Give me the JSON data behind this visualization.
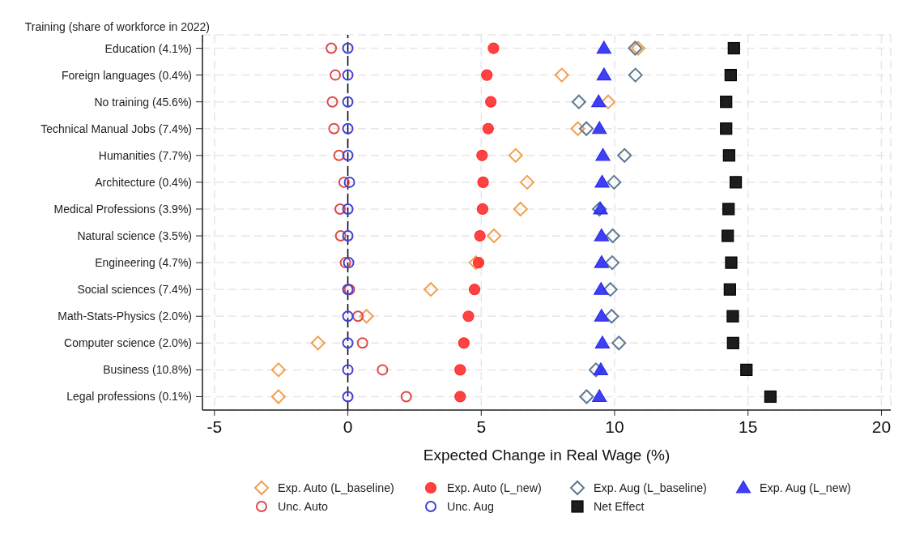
{
  "chart_data": {
    "type": "scatter",
    "orientation": "horizontal",
    "xlabel": "Expected Change in Real Wage (%)",
    "ylabel": "Training (share of workforce in 2022)",
    "categories": [
      "Education (4.1%)",
      "Foreign languages (0.4%)",
      "No training (45.6%)",
      "Technical Manual Jobs (7.4%)",
      "Humanities (7.7%)",
      "Architecture (0.4%)",
      "Medical Professions (3.9%)",
      "Natural science (3.5%)",
      "Engineering (4.7%)",
      "Social sciences (7.4%)",
      "Math-Stats-Physics (2.0%)",
      "Computer science (2.0%)",
      "Business (10.8%)",
      "Legal professions (0.1%)"
    ],
    "xlim": [
      -5.45,
      20.35
    ],
    "xticks": [
      -5,
      0,
      5,
      10,
      15,
      20
    ],
    "grid": true,
    "legend": "bottom",
    "ref_lines": [
      {
        "axis": "x",
        "value": 0,
        "color": "#000000",
        "line_style": "dashed"
      }
    ],
    "series": [
      {
        "name": "Exp. Auto (L_baseline)",
        "color": "#f2a04e",
        "marker": "diamond",
        "values": [
          10.88,
          8.02,
          9.76,
          8.62,
          6.29,
          6.72,
          6.47,
          5.48,
          4.8,
          3.11,
          0.7,
          -1.12,
          -2.6,
          -2.6
        ]
      },
      {
        "name": "Exp. Auto (L_new)",
        "color": "#ff2e2e",
        "marker": "circle",
        "values": [
          5.46,
          5.21,
          5.36,
          5.26,
          5.03,
          5.07,
          5.05,
          4.95,
          4.9,
          4.75,
          4.52,
          4.35,
          4.21,
          4.21
        ]
      },
      {
        "name": "Exp. Aug (L_baseline)",
        "color": "#5e7a92",
        "marker": "diamond",
        "values": [
          10.77,
          10.78,
          8.66,
          8.94,
          10.37,
          9.98,
          9.43,
          9.93,
          9.91,
          9.84,
          9.89,
          10.16,
          9.3,
          8.95
        ]
      },
      {
        "name": "Exp. Aug (L_new)",
        "color": "#2b2bf2",
        "marker": "triangle",
        "values": [
          9.6,
          9.6,
          9.4,
          9.43,
          9.56,
          9.53,
          9.47,
          9.51,
          9.51,
          9.49,
          9.51,
          9.54,
          9.48,
          9.43
        ]
      },
      {
        "name": "Unc. Auto",
        "color": "#e04848",
        "marker": "circle",
        "values": [
          -0.62,
          -0.47,
          -0.58,
          -0.52,
          -0.33,
          -0.14,
          -0.29,
          -0.27,
          -0.09,
          0.06,
          0.38,
          0.55,
          1.3,
          2.19
        ]
      },
      {
        "name": "Unc. Aug",
        "color": "#4040dc",
        "marker": "circle",
        "values": [
          0,
          0,
          0,
          0,
          0,
          0.06,
          0,
          0,
          0.03,
          0,
          0,
          0,
          0,
          0
        ]
      },
      {
        "name": "Net Effect",
        "color": "#111111",
        "marker": "square",
        "values": [
          14.47,
          14.35,
          14.18,
          14.18,
          14.29,
          14.54,
          14.27,
          14.24,
          14.37,
          14.32,
          14.43,
          14.44,
          14.94,
          15.84
        ]
      }
    ]
  }
}
